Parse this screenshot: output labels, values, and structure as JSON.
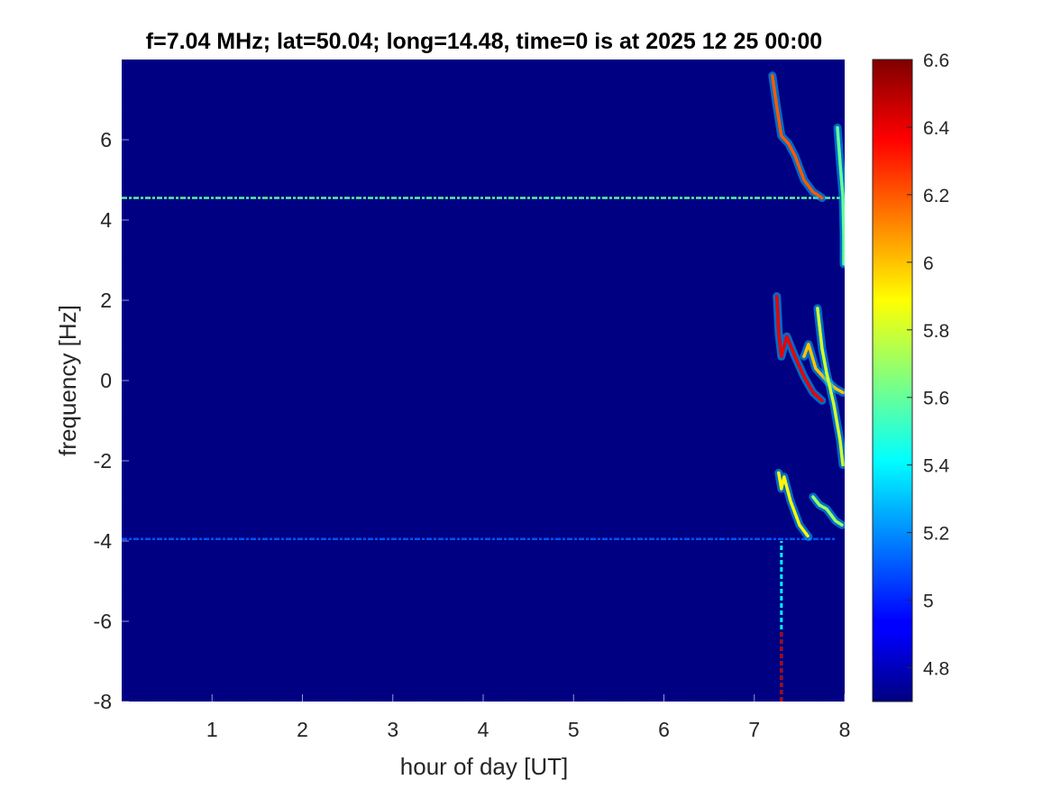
{
  "chart_data": {
    "type": "heatmap",
    "title": "f=7.04 MHz;  lat=50.04; long=14.48, time=0 is at 2025 12 25 00:00",
    "xlabel": "hour of day [UT]",
    "ylabel": "frequency [Hz]",
    "xlim": [
      0,
      8
    ],
    "ylim": [
      -8,
      8
    ],
    "x_ticks": [
      1,
      2,
      3,
      4,
      5,
      6,
      7,
      8
    ],
    "x_tick_labels": [
      "1",
      "2",
      "3",
      "4",
      "5",
      "6",
      "7",
      "8"
    ],
    "y_ticks": [
      6,
      4,
      2,
      0,
      -2,
      -4,
      -6,
      -8
    ],
    "y_tick_labels": [
      "6",
      "4",
      "2",
      "0",
      "-2",
      "-4",
      "-6",
      "-8"
    ],
    "colorbar": {
      "range": [
        4.7,
        6.6
      ],
      "ticks": [
        6.6,
        6.4,
        6.2,
        6,
        5.8,
        5.6,
        5.4,
        5.2,
        5,
        4.8
      ],
      "tick_labels": [
        "6.6",
        "6.4",
        "6.2",
        "6",
        "5.8",
        "5.6",
        "5.4",
        "5.2",
        "5",
        "4.8"
      ],
      "colormap": "jet"
    },
    "background_value": 4.7,
    "features": [
      {
        "kind": "horizontal_line",
        "y": 4.55,
        "x_range": [
          0,
          7.95
        ],
        "value": 5.6
      },
      {
        "kind": "horizontal_line",
        "y": -3.95,
        "x_range": [
          0,
          7.9
        ],
        "value": 5.1
      },
      {
        "kind": "trace",
        "value": 6.2,
        "points": [
          [
            7.2,
            7.6
          ],
          [
            7.25,
            6.8
          ],
          [
            7.3,
            6.1
          ],
          [
            7.38,
            5.9
          ],
          [
            7.45,
            5.6
          ],
          [
            7.55,
            5.0
          ],
          [
            7.65,
            4.7
          ],
          [
            7.75,
            4.55
          ]
        ]
      },
      {
        "kind": "trace",
        "value": 6.4,
        "points": [
          [
            7.25,
            2.1
          ],
          [
            7.27,
            1.2
          ],
          [
            7.3,
            0.6
          ],
          [
            7.36,
            1.1
          ],
          [
            7.45,
            0.6
          ],
          [
            7.55,
            0.1
          ],
          [
            7.65,
            -0.3
          ],
          [
            7.75,
            -0.5
          ]
        ]
      },
      {
        "kind": "trace",
        "value": 6.0,
        "points": [
          [
            7.55,
            0.6
          ],
          [
            7.6,
            0.9
          ],
          [
            7.68,
            0.3
          ],
          [
            7.8,
            0.0
          ],
          [
            7.9,
            -0.2
          ],
          [
            7.98,
            -0.3
          ]
        ]
      },
      {
        "kind": "trace",
        "value": 5.8,
        "points": [
          [
            7.7,
            1.8
          ],
          [
            7.75,
            0.8
          ],
          [
            7.8,
            0.2
          ],
          [
            7.88,
            -0.6
          ],
          [
            7.95,
            -1.5
          ],
          [
            7.98,
            -2.1
          ]
        ]
      },
      {
        "kind": "trace",
        "value": 5.9,
        "points": [
          [
            7.27,
            -2.3
          ],
          [
            7.3,
            -2.7
          ],
          [
            7.33,
            -2.4
          ],
          [
            7.4,
            -3.0
          ],
          [
            7.5,
            -3.6
          ],
          [
            7.6,
            -3.9
          ]
        ]
      },
      {
        "kind": "trace",
        "value": 5.7,
        "points": [
          [
            7.65,
            -2.9
          ],
          [
            7.72,
            -3.1
          ],
          [
            7.8,
            -3.2
          ],
          [
            7.9,
            -3.5
          ],
          [
            7.97,
            -3.6
          ]
        ]
      },
      {
        "kind": "trace",
        "value": 5.6,
        "points": [
          [
            7.92,
            6.3
          ],
          [
            7.95,
            5.4
          ],
          [
            7.98,
            4.6
          ],
          [
            7.99,
            3.6
          ],
          [
            7.99,
            2.9
          ]
        ]
      },
      {
        "kind": "vertical_line",
        "x": 7.3,
        "y_range": [
          -8,
          -4.0
        ],
        "value": 5.4
      },
      {
        "kind": "vertical_line",
        "x": 7.3,
        "y_range": [
          -8,
          -6.2
        ],
        "value": 6.5
      }
    ]
  }
}
